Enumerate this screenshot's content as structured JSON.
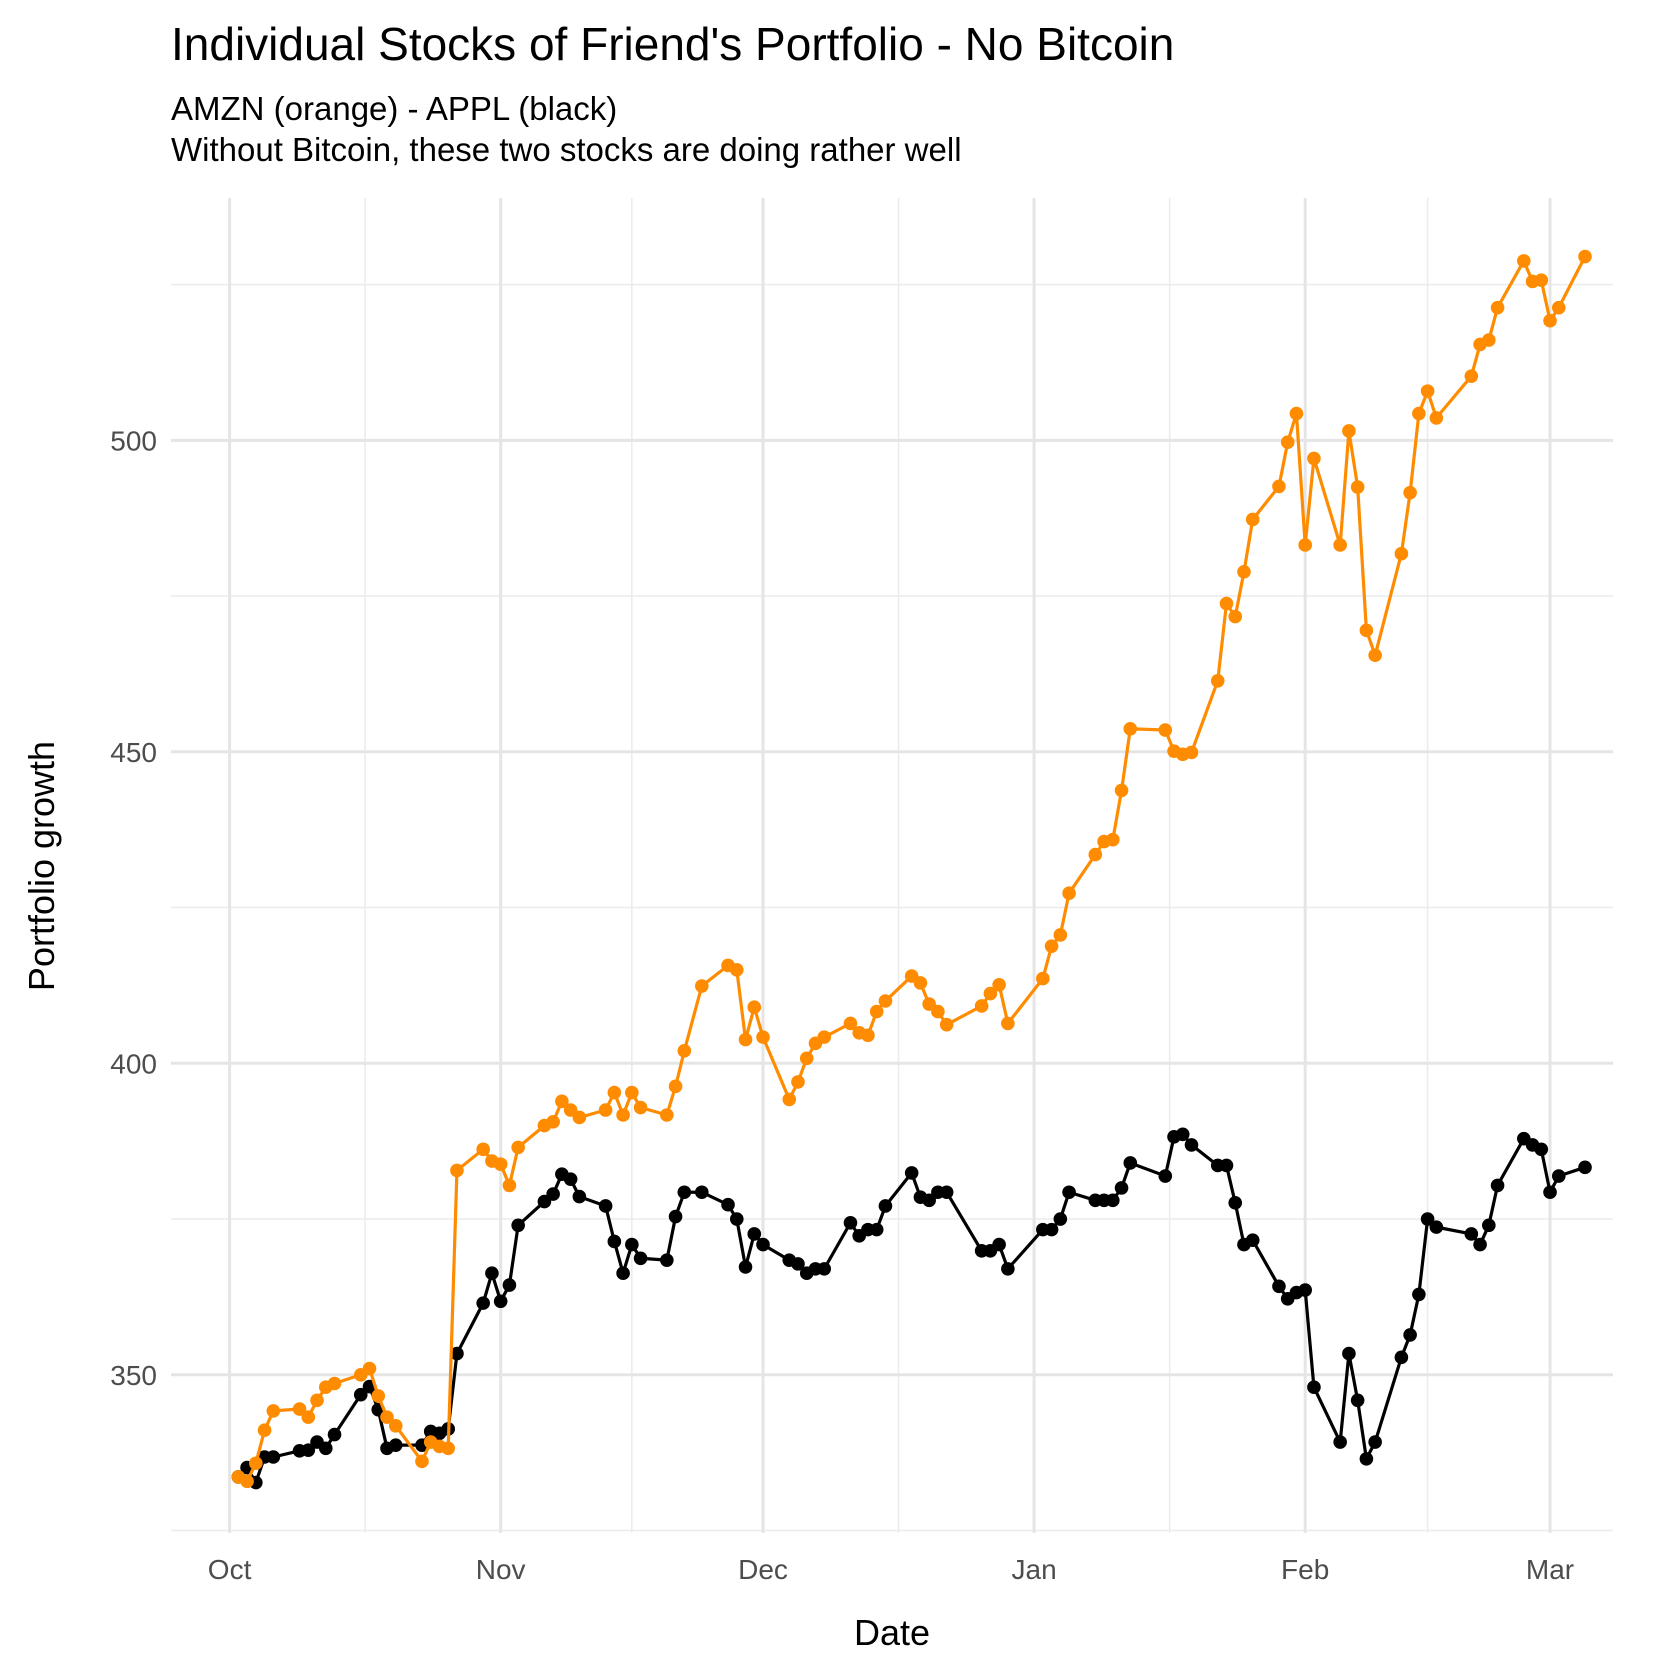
{
  "chart_data": {
    "type": "line",
    "title": "Individual Stocks of Friend's Portfolio - No Bitcoin",
    "subtitle": [
      "AMZN (orange) - APPL (black)",
      "Without Bitcoin, these two stocks are doing rather well"
    ],
    "x_label": "Date",
    "y_label": "Portfolio growth",
    "x": [
      1,
      2,
      3,
      4,
      5,
      8,
      9,
      10,
      11,
      12,
      15,
      16,
      17,
      18,
      19,
      22,
      23,
      24,
      25,
      26,
      29,
      30,
      31,
      32,
      33,
      36,
      37,
      38,
      39,
      40,
      43,
      44,
      45,
      46,
      47,
      50,
      51,
      52,
      54,
      57,
      58,
      59,
      60,
      61,
      64,
      65,
      66,
      67,
      68,
      71,
      72,
      73,
      74,
      75,
      78,
      79,
      80,
      81,
      82,
      86,
      87,
      88,
      89,
      93,
      94,
      95,
      96,
      99,
      100,
      101,
      102,
      103,
      107,
      108,
      109,
      110,
      113,
      114,
      115,
      116,
      117,
      120,
      121,
      122,
      123,
      124,
      127,
      128,
      129,
      130,
      131,
      134,
      135,
      136,
      137,
      138,
      142,
      143,
      144,
      145,
      148,
      149,
      150,
      151,
      152,
      155
    ],
    "series": [
      {
        "color": "#000000",
        "values": [
          333.6,
          335.1,
          332.7,
          336.8,
          336.8,
          337.8,
          337.9,
          339.2,
          338.2,
          340.4,
          346.8,
          348.1,
          344.4,
          338.2,
          338.7,
          338.7,
          340.9,
          340.6,
          341.3,
          353.4,
          361.5,
          366.3,
          361.8,
          364.4,
          374.0,
          377.8,
          379.0,
          382.2,
          381.4,
          378.6,
          377.1,
          371.4,
          366.3,
          370.9,
          368.7,
          368.4,
          375.4,
          379.3,
          379.3,
          377.3,
          375.0,
          367.3,
          372.6,
          370.9,
          368.4,
          367.8,
          366.3,
          367.0,
          367.0,
          374.4,
          372.3,
          373.3,
          373.3,
          377.1,
          382.4,
          378.5,
          378.0,
          379.3,
          379.3,
          369.9,
          369.9,
          370.9,
          367.0,
          373.3,
          373.3,
          375.0,
          379.3,
          378.0,
          378.0,
          378.0,
          380.0,
          384.0,
          381.9,
          388.2,
          388.6,
          386.9,
          383.6,
          383.6,
          377.6,
          370.9,
          371.6,
          364.2,
          362.2,
          363.2,
          363.6,
          348.0,
          339.2,
          353.4,
          345.9,
          336.5,
          339.2,
          352.8,
          356.4,
          362.9,
          375.0,
          373.7,
          372.6,
          370.9,
          374.0,
          380.4,
          387.9,
          386.9,
          386.2,
          379.3,
          381.9,
          383.3
        ]
      },
      {
        "color": "#ff8c00",
        "values": [
          333.6,
          332.9,
          335.8,
          341.1,
          344.2,
          344.5,
          343.2,
          345.9,
          348.0,
          348.6,
          350.0,
          351.0,
          346.6,
          343.2,
          341.8,
          336.1,
          339.2,
          338.5,
          338.2,
          382.8,
          386.2,
          384.3,
          383.8,
          380.4,
          386.5,
          390.0,
          390.6,
          393.9,
          392.5,
          391.3,
          392.5,
          395.3,
          391.7,
          395.3,
          392.9,
          391.7,
          396.3,
          402.0,
          412.4,
          415.7,
          415.0,
          403.8,
          409.0,
          404.2,
          394.2,
          397.0,
          400.8,
          403.2,
          404.2,
          406.4,
          404.9,
          404.5,
          408.3,
          410.0,
          414.0,
          412.9,
          409.5,
          408.3,
          406.2,
          409.2,
          411.2,
          412.6,
          406.4,
          413.6,
          418.8,
          420.6,
          427.3,
          433.5,
          435.6,
          435.9,
          443.8,
          453.7,
          453.5,
          450.1,
          449.6,
          449.9,
          461.4,
          473.8,
          471.7,
          478.9,
          487.3,
          492.6,
          499.7,
          504.3,
          483.2,
          497.1,
          483.2,
          501.5,
          492.5,
          469.5,
          465.5,
          481.8,
          491.6,
          504.3,
          507.9,
          503.6,
          510.3,
          515.4,
          516.1,
          521.3,
          528.8,
          525.5,
          525.7,
          519.2,
          521.3,
          529.5
        ]
      }
    ],
    "xlim": [
      -6.7,
      158.2
    ],
    "xticks": [
      {
        "value": 0,
        "label": "Oct"
      },
      {
        "value": 31,
        "label": "Nov"
      },
      {
        "value": 61,
        "label": "Dec"
      },
      {
        "value": 92,
        "label": "Jan"
      },
      {
        "value": 123,
        "label": "Feb"
      },
      {
        "value": 151,
        "label": "Mar"
      }
    ],
    "x_minor_ticks": [
      15.5,
      46,
      76.5,
      107.5,
      137
    ],
    "ylim": [
      324.6,
      538.9
    ],
    "yticks": [
      350,
      400,
      450,
      500
    ],
    "y_minor_ticks": [
      325,
      375,
      425,
      475,
      525
    ],
    "grid": true
  }
}
